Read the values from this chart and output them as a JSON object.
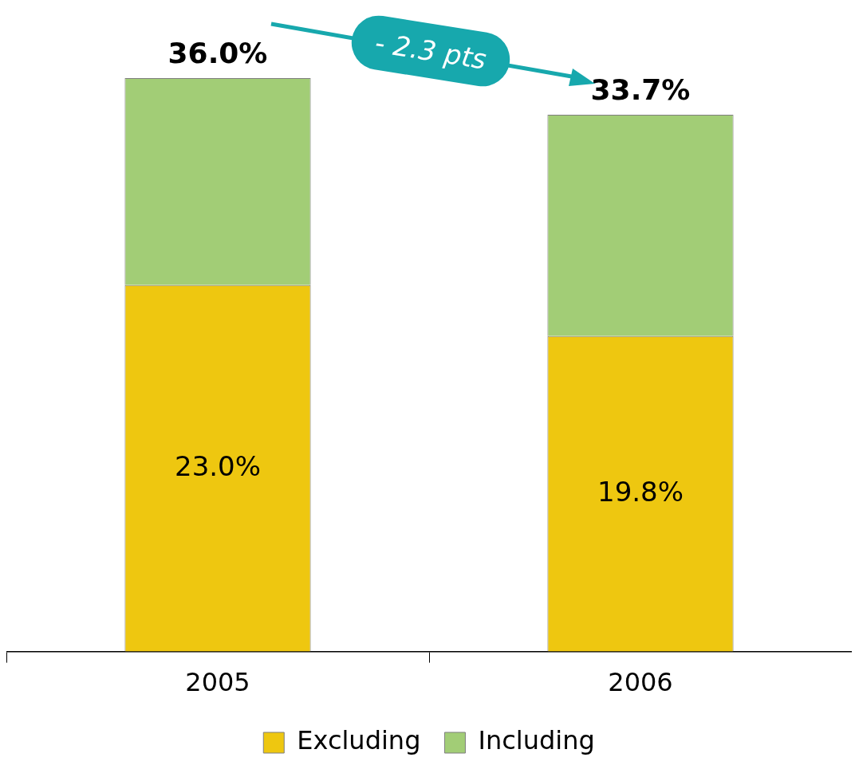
{
  "chart_data": {
    "type": "bar",
    "stacked": true,
    "categories": [
      "2005",
      "2006"
    ],
    "series": [
      {
        "name": "Excluding",
        "color": "#eec710",
        "values": [
          23.0,
          19.8
        ],
        "value_labels": [
          "23.0%",
          "19.8%"
        ]
      },
      {
        "name": "Including",
        "color": "#a2cd76",
        "values": [
          13.0,
          13.9
        ],
        "value_labels": [
          null,
          null
        ]
      }
    ],
    "totals": [
      "36.0%",
      "33.7%"
    ],
    "ylim": [
      0,
      40
    ],
    "grid": false,
    "legend": "bottom",
    "annotations": [
      "- 2.3 pts"
    ]
  }
}
